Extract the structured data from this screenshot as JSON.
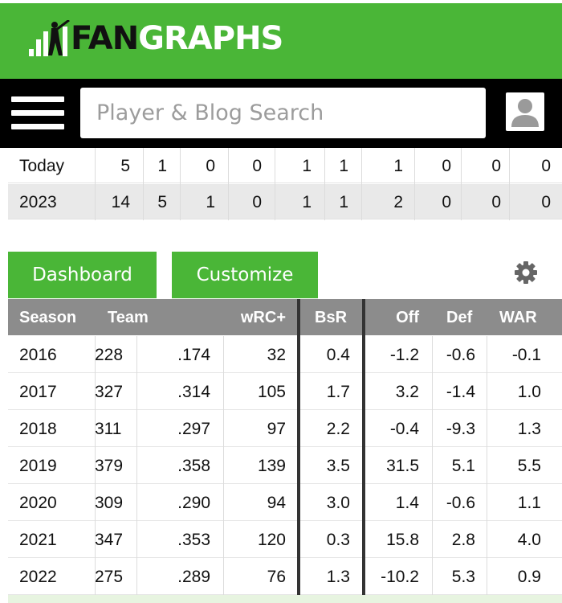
{
  "header": {
    "logo_fan": "FAN",
    "logo_graphs": "GRAPHS"
  },
  "search": {
    "placeholder": "Player & Blog Search"
  },
  "summary_rows": [
    {
      "label": "Today",
      "values": [
        "5",
        "1",
        "0",
        "0",
        "1",
        "1",
        "1",
        "0",
        "0",
        "0"
      ]
    },
    {
      "label": "2023",
      "values": [
        "14",
        "5",
        "1",
        "0",
        "1",
        "1",
        "2",
        "0",
        "0",
        "0"
      ]
    }
  ],
  "buttons": {
    "dashboard": "Dashboard",
    "customize": "Customize"
  },
  "table": {
    "headers": [
      "Season",
      "Team",
      "wRC+",
      "BsR",
      "Off",
      "Def",
      "WAR"
    ],
    "rows": [
      {
        "season": "2016",
        "c1": "228",
        "c2": ".174",
        "wrc": "32",
        "bsr": "0.4",
        "off": "-1.2",
        "def": "-0.6",
        "war": "-0.1"
      },
      {
        "season": "2017",
        "c1": "327",
        "c2": ".314",
        "wrc": "105",
        "bsr": "1.7",
        "off": "3.2",
        "def": "-1.4",
        "war": "1.0"
      },
      {
        "season": "2018",
        "c1": "311",
        "c2": ".297",
        "wrc": "97",
        "bsr": "2.2",
        "off": "-0.4",
        "def": "-9.3",
        "war": "1.3"
      },
      {
        "season": "2019",
        "c1": "379",
        "c2": ".358",
        "wrc": "139",
        "bsr": "3.5",
        "off": "31.5",
        "def": "5.1",
        "war": "5.5"
      },
      {
        "season": "2020",
        "c1": "309",
        "c2": ".290",
        "wrc": "94",
        "bsr": "3.0",
        "off": "1.4",
        "def": "-0.6",
        "war": "1.1"
      },
      {
        "season": "2021",
        "c1": "347",
        "c2": ".353",
        "wrc": "120",
        "bsr": "0.3",
        "off": "15.8",
        "def": "2.8",
        "war": "4.0"
      },
      {
        "season": "2022",
        "c1": "275",
        "c2": ".289",
        "wrc": "76",
        "bsr": "1.3",
        "off": "-10.2",
        "def": "5.3",
        "war": "0.9"
      }
    ]
  },
  "colors": {
    "brand_green": "#4ab637",
    "header_black": "#000000",
    "table_header_gray": "#8c8c8c"
  },
  "icons": [
    "logo-batter-icon",
    "hamburger-menu-icon",
    "user-avatar-icon",
    "gear-icon"
  ]
}
